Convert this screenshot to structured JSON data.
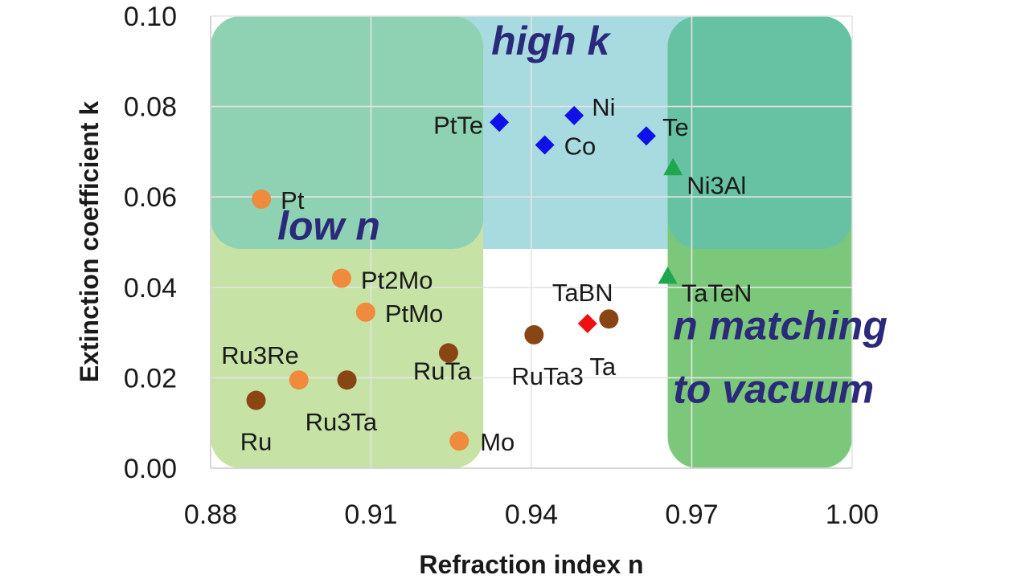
{
  "chart_data": {
    "type": "scatter",
    "title": "",
    "xlabel": "Refraction index n",
    "ylabel": "Extinction coefficient k",
    "xlim": [
      0.88,
      1.0
    ],
    "ylim": [
      0.0,
      0.1
    ],
    "xticks": [
      0.88,
      0.91,
      0.94,
      0.97,
      1.0
    ],
    "xtick_labels": [
      "0.88",
      "0.91",
      "0.94",
      "0.97",
      "1.00"
    ],
    "yticks": [
      0.0,
      0.02,
      0.04,
      0.06,
      0.08,
      0.1
    ],
    "ytick_labels": [
      "0.00",
      "0.02",
      "0.04",
      "0.06",
      "0.08",
      "0.10"
    ],
    "grid": true,
    "regions": [
      {
        "name": "high-k-region",
        "label": "",
        "x": [
          0.88,
          1.0
        ],
        "y": [
          0.0485,
          0.1
        ],
        "color": "#a7dbe0"
      },
      {
        "name": "low-n-region",
        "label": "",
        "x": [
          0.88,
          0.931
        ],
        "y": [
          0.0,
          0.1
        ],
        "color": "#c6e2a4"
      },
      {
        "name": "n-matching-region",
        "label": "",
        "x": [
          0.9655,
          1.0
        ],
        "y": [
          0.0,
          0.1
        ],
        "color": "#7cc87a"
      },
      {
        "name": "low-n-high-k-overlap",
        "label": "",
        "x": [
          0.88,
          0.931
        ],
        "y": [
          0.0485,
          0.1
        ],
        "color": "#8fd2b3"
      },
      {
        "name": "n-matching-high-k-overlap",
        "label": "",
        "x": [
          0.9655,
          1.0
        ],
        "y": [
          0.0485,
          0.1
        ],
        "color": "#66c2a3"
      }
    ],
    "region_labels": [
      {
        "text": "high k",
        "x": 0.9325,
        "y": 0.0915
      },
      {
        "text": "low n",
        "x": 0.8925,
        "y": 0.0505
      },
      {
        "text": "n matching",
        "x": 0.9665,
        "y": 0.0285
      },
      {
        "text": "to vacuum",
        "x": 0.9665,
        "y": 0.0145
      }
    ],
    "series": [
      {
        "name": "orange-circles",
        "marker": "circle",
        "color": "#f08a3c",
        "points": [
          {
            "label": "Pt",
            "x": 0.8895,
            "y": 0.0595
          },
          {
            "label": "Pt2Mo",
            "x": 0.9045,
            "y": 0.042
          },
          {
            "label": "PtMo",
            "x": 0.909,
            "y": 0.0345
          },
          {
            "label": "Ru3Re",
            "x": 0.8965,
            "y": 0.0195
          },
          {
            "label": "Mo",
            "x": 0.9265,
            "y": 0.006
          }
        ]
      },
      {
        "name": "brown-circles",
        "marker": "circle",
        "color": "#8a4515",
        "points": [
          {
            "label": "Ru",
            "x": 0.8885,
            "y": 0.015
          },
          {
            "label": "Ru3Ta",
            "x": 0.9055,
            "y": 0.0195
          },
          {
            "label": "RuTa",
            "x": 0.9245,
            "y": 0.0255
          },
          {
            "label": "RuTa3",
            "x": 0.9405,
            "y": 0.0295
          },
          {
            "label": "Ta",
            "x": 0.9545,
            "y": 0.033
          }
        ]
      },
      {
        "name": "blue-diamonds",
        "marker": "diamond",
        "color": "#1010e8",
        "points": [
          {
            "label": "PtTe",
            "x": 0.934,
            "y": 0.0765
          },
          {
            "label": "Co",
            "x": 0.9425,
            "y": 0.0715
          },
          {
            "label": "Ni",
            "x": 0.948,
            "y": 0.078
          },
          {
            "label": "Te",
            "x": 0.9615,
            "y": 0.0735
          }
        ]
      },
      {
        "name": "green-triangles",
        "marker": "triangle",
        "color": "#1fa64e",
        "points": [
          {
            "label": "Ni3Al",
            "x": 0.9665,
            "y": 0.0665
          },
          {
            "label": "TaTeN",
            "x": 0.9655,
            "y": 0.0425
          }
        ]
      },
      {
        "name": "red-diamonds",
        "marker": "diamond",
        "color": "#ee1111",
        "points": [
          {
            "label": "TaBN",
            "x": 0.9505,
            "y": 0.032
          }
        ]
      }
    ]
  }
}
